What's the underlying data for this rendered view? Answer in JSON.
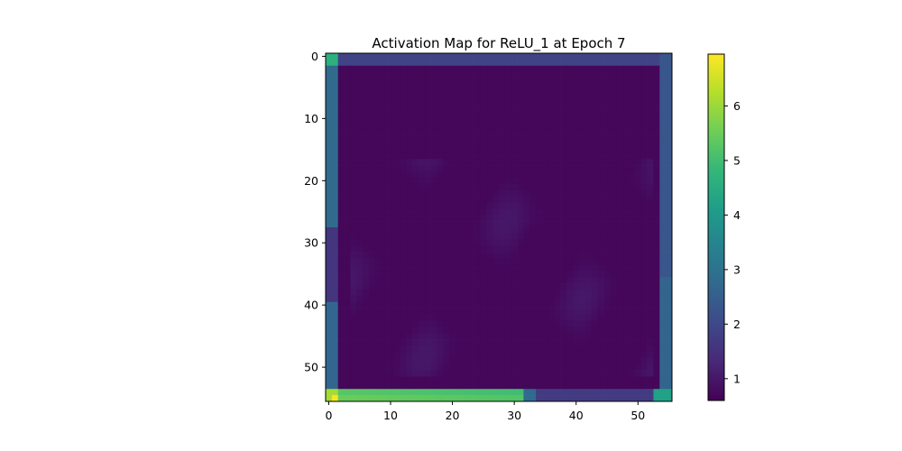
{
  "chart_data": {
    "type": "heatmap",
    "title": "Activation Map for ReLU_1 at Epoch 7",
    "xlabel": "",
    "ylabel": "",
    "grid": false,
    "rows": 56,
    "cols": 56,
    "x_range": [
      -0.5,
      55.5
    ],
    "y_range": [
      -0.5,
      55.5
    ],
    "y_direction": "top-to-bottom",
    "x_ticks": [
      0,
      10,
      20,
      30,
      40,
      50
    ],
    "x_tick_labels": [
      "0",
      "10",
      "20",
      "30",
      "40",
      "50"
    ],
    "y_ticks": [
      0,
      10,
      20,
      30,
      40,
      50
    ],
    "y_tick_labels": [
      "0",
      "10",
      "20",
      "30",
      "40",
      "50"
    ],
    "colormap": "viridis",
    "colorbar": {
      "placement": "right",
      "vmin": 0.6,
      "vmax": 6.95,
      "ticks": [
        1,
        2,
        3,
        4,
        5,
        6
      ],
      "tick_labels": [
        "1",
        "2",
        "3",
        "4",
        "5",
        "6"
      ]
    },
    "value_summary": {
      "background_interior": 0.7,
      "faint_texture_interior": 1.1,
      "top_border_row": 1.9,
      "left_border_columns_upper": 2.8,
      "right_border_columns": 2.3,
      "bottom_border_row_left_half": 5.3,
      "bottom_left_corner_peak": 6.9,
      "bottom_right_corner": 4.2
    },
    "values": []
  }
}
